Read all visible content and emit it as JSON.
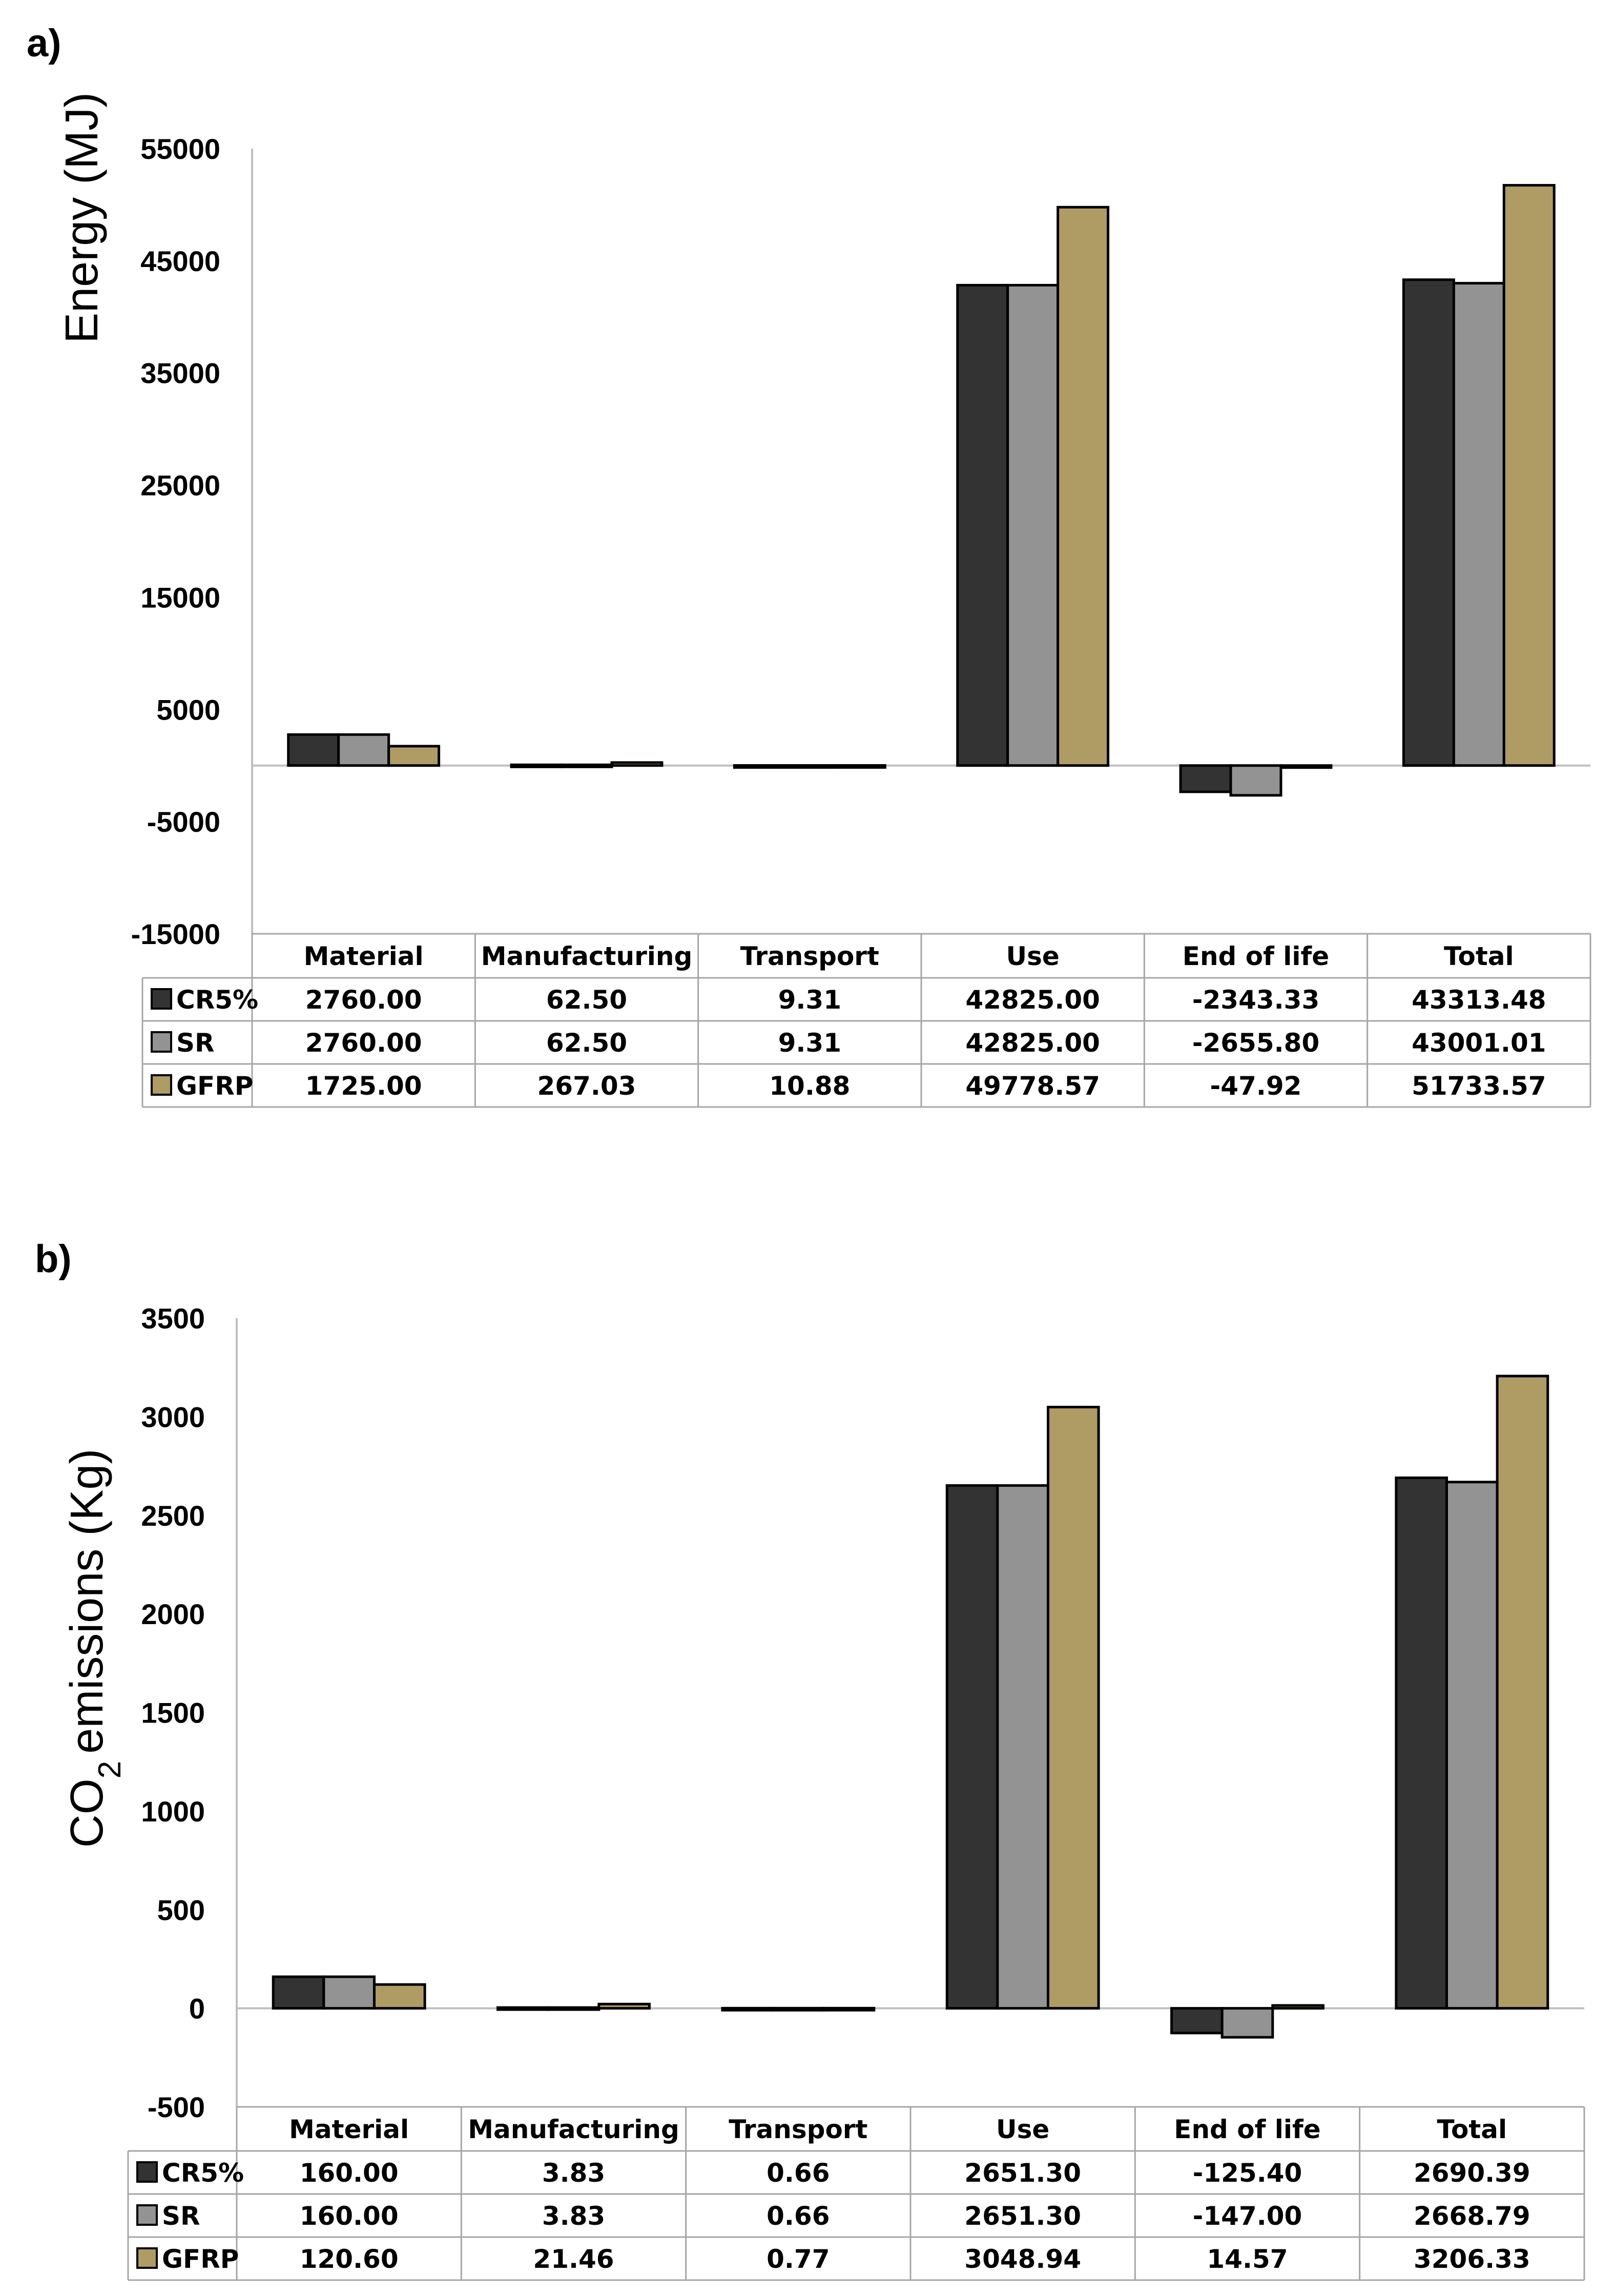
{
  "chart_data": [
    {
      "panel": "a)",
      "type": "bar",
      "ylabel": "Energy (MJ)",
      "ylim": [
        -15000,
        55000
      ],
      "yticks": [
        -15000,
        -5000,
        5000,
        15000,
        25000,
        35000,
        45000,
        55000
      ],
      "categories": [
        "Material",
        "Manufacturing",
        "Transport",
        "Use",
        "End of life",
        "Total"
      ],
      "series": [
        {
          "name": "CR5%",
          "color": "#333333",
          "values": [
            2760.0,
            62.5,
            9.31,
            42825.0,
            -2343.33,
            43313.48
          ],
          "labels": [
            "2760.00",
            "62.50",
            "9.31",
            "42825.00",
            "-2343.33",
            "43313.48"
          ]
        },
        {
          "name": "SR",
          "color": "#939393",
          "values": [
            2760.0,
            62.5,
            9.31,
            42825.0,
            -2655.8,
            43001.01
          ],
          "labels": [
            "2760.00",
            "62.50",
            "9.31",
            "42825.00",
            "-2655.80",
            "43001.01"
          ]
        },
        {
          "name": "GFRP",
          "color": "#af9c64",
          "values": [
            1725.0,
            267.03,
            10.88,
            49778.57,
            -47.92,
            51733.57
          ],
          "labels": [
            "1725.00",
            "267.03",
            "10.88",
            "49778.57",
            "-47.92",
            "51733.57"
          ]
        }
      ]
    },
    {
      "panel": "b)",
      "type": "bar",
      "ylabel_prefix": "CO",
      "ylabel_sub": "2",
      "ylabel_suffix": "emissions (Kg)",
      "ylim": [
        -500,
        3500
      ],
      "yticks": [
        -500,
        0,
        500,
        1000,
        1500,
        2000,
        2500,
        3000,
        3500
      ],
      "categories": [
        "Material",
        "Manufacturing",
        "Transport",
        "Use",
        "End of life",
        "Total"
      ],
      "series": [
        {
          "name": "CR5%",
          "color": "#333333",
          "values": [
            160.0,
            3.83,
            0.66,
            2651.3,
            -125.4,
            2690.39
          ],
          "labels": [
            "160.00",
            "3.83",
            "0.66",
            "2651.30",
            "-125.40",
            "2690.39"
          ]
        },
        {
          "name": "SR",
          "color": "#939393",
          "values": [
            160.0,
            3.83,
            0.66,
            2651.3,
            -147.0,
            2668.79
          ],
          "labels": [
            "160.00",
            "3.83",
            "0.66",
            "2651.30",
            "-147.00",
            "2668.79"
          ]
        },
        {
          "name": "GFRP",
          "color": "#af9c64",
          "values": [
            120.6,
            21.46,
            0.77,
            3048.94,
            14.57,
            3206.33
          ],
          "labels": [
            "120.60",
            "21.46",
            "0.77",
            "3048.94",
            "14.57",
            "3206.33"
          ]
        }
      ]
    }
  ]
}
